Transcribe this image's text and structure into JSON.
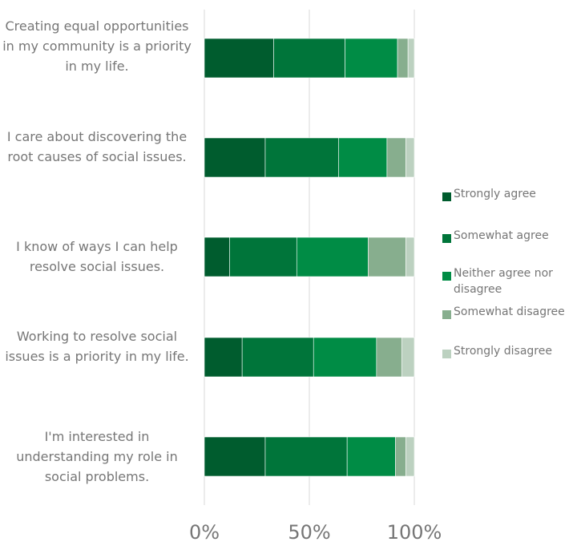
{
  "chart_data": {
    "type": "bar",
    "orientation": "horizontal",
    "stacked": "percent",
    "categories": [
      "Creating equal opportunities in my community is a priority in my life.",
      "I care about discovering the root causes of social issues.",
      "I know of ways I can help resolve social issues.",
      "Working to resolve social issues is a priority in my life.",
      "I'm interested in understanding my role in social problems."
    ],
    "series": [
      {
        "name": "Strongly agree",
        "color": "#005C2E",
        "values": [
          33,
          29,
          12,
          18,
          29
        ]
      },
      {
        "name": "Somewhat agree",
        "color": "#00753A",
        "values": [
          34,
          35,
          32,
          34,
          39
        ]
      },
      {
        "name": "Neither agree nor disagree",
        "color": "#008C45",
        "values": [
          25,
          23,
          34,
          30,
          23
        ]
      },
      {
        "name": "Somewhat disagree",
        "color": "#87AE8E",
        "values": [
          5,
          9,
          18,
          12,
          5
        ]
      },
      {
        "name": "Strongly disagree",
        "color": "#BCD1C0",
        "values": [
          3,
          4,
          4,
          6,
          4
        ]
      }
    ],
    "xaxis": {
      "ticks": [
        "0%",
        "50%",
        "100%"
      ],
      "tick_values": [
        0,
        50,
        100
      ],
      "range": [
        0,
        100
      ]
    },
    "grid": "vertical",
    "legend": "right",
    "title": "",
    "xlabel": "",
    "ylabel": ""
  }
}
